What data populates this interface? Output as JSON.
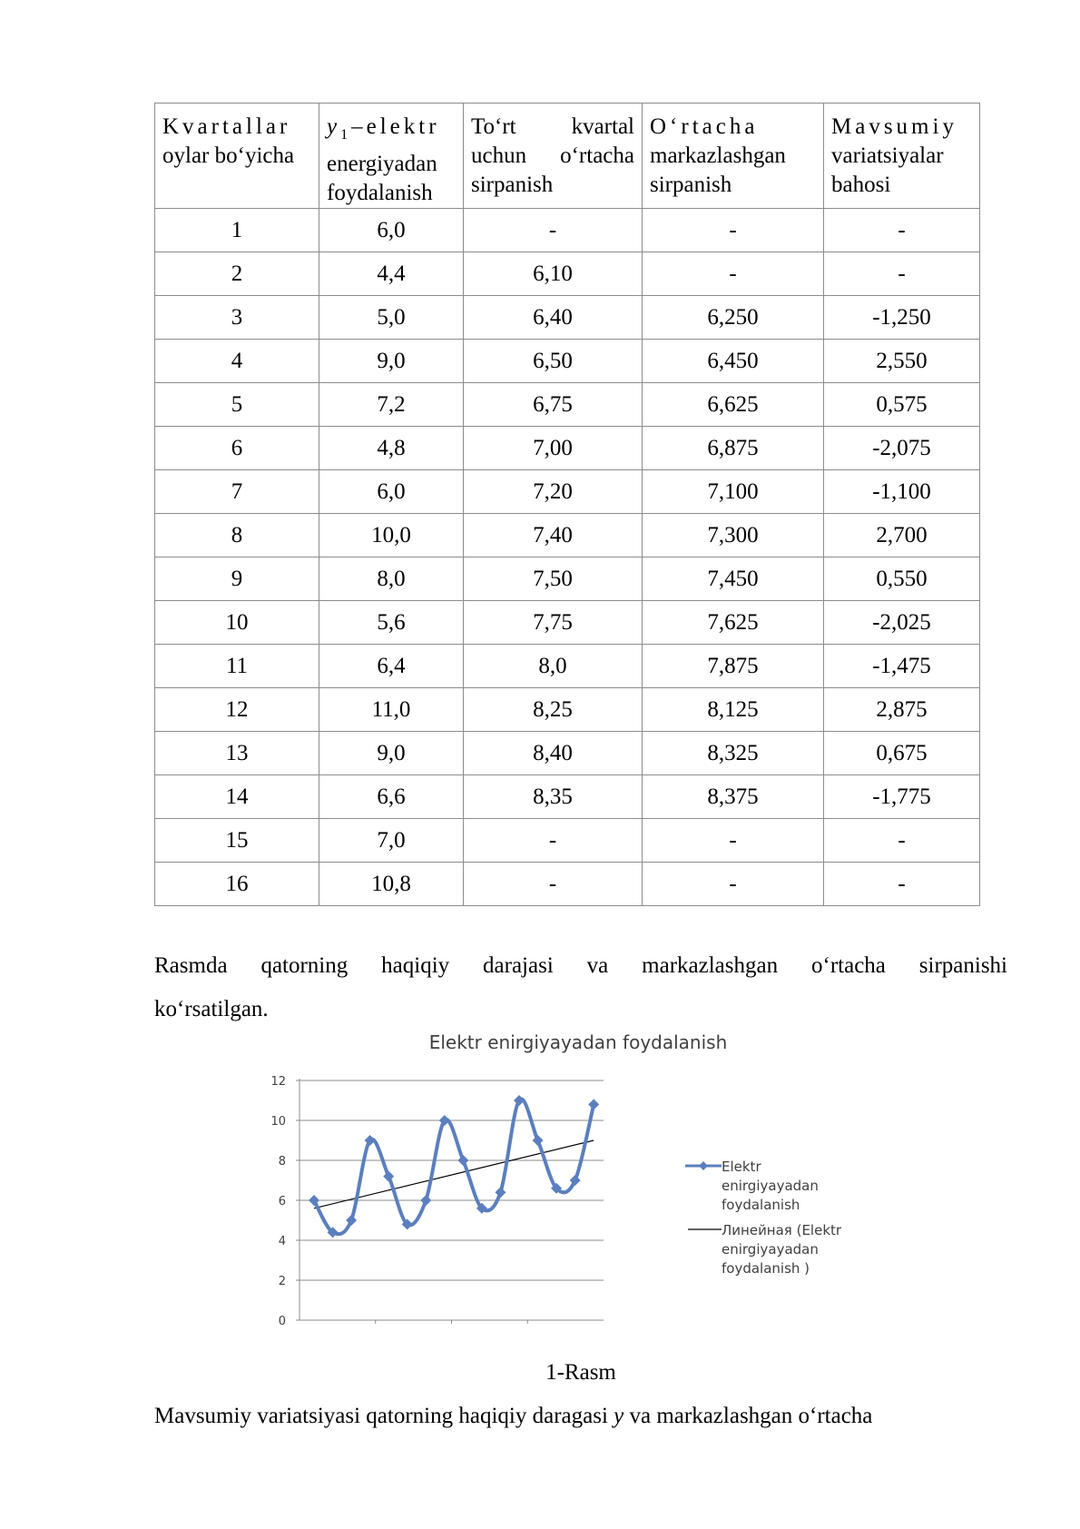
{
  "table": {
    "headers": [
      {
        "lines": [
          "Kvartallar",
          "oylar bo‘yicha"
        ],
        "justify": [
          0
        ]
      },
      {
        "lines": [
          "elektr",
          "energiyadan",
          "foydalanish"
        ],
        "justify": [
          0
        ],
        "symbol": "y",
        "sub": "1",
        "dash": "–"
      },
      {
        "lines": [
          "To‘rt kvartal",
          "uchun o‘rtacha",
          "sirpanish"
        ],
        "justify": [
          0,
          1
        ]
      },
      {
        "lines": [
          "O‘rtacha",
          "markazlashgan",
          "sirpanish"
        ],
        "justify": [
          0
        ]
      },
      {
        "lines": [
          "Mavsumiy",
          "variatsiyalar",
          "bahosi"
        ],
        "justify": [
          0
        ]
      }
    ],
    "rows": [
      [
        "1",
        "6,0",
        "-",
        "-",
        "-"
      ],
      [
        "2",
        "4,4",
        "6,10",
        "-",
        "-"
      ],
      [
        "3",
        "5,0",
        "6,40",
        "6,250",
        "-1,250"
      ],
      [
        "4",
        "9,0",
        "6,50",
        "6,450",
        "2,550"
      ],
      [
        "5",
        "7,2",
        "6,75",
        "6,625",
        "0,575"
      ],
      [
        "6",
        "4,8",
        "7,00",
        "6,875",
        "-2,075"
      ],
      [
        "7",
        "6,0",
        "7,20",
        "7,100",
        "-1,100"
      ],
      [
        "8",
        "10,0",
        "7,40",
        "7,300",
        "2,700"
      ],
      [
        "9",
        "8,0",
        "7,50",
        "7,450",
        "0,550"
      ],
      [
        "10",
        "5,6",
        "7,75",
        "7,625",
        "-2,025"
      ],
      [
        "11",
        "6,4",
        "8,0",
        "7,875",
        "-1,475"
      ],
      [
        "12",
        "11,0",
        "8,25",
        "8,125",
        "2,875"
      ],
      [
        "13",
        "9,0",
        "8,40",
        "8,325",
        "0,675"
      ],
      [
        "14",
        "6,6",
        "8,35",
        "8,375",
        "-1,775"
      ],
      [
        "15",
        "7,0",
        "-",
        "-",
        "-"
      ],
      [
        "16",
        "10,8",
        "-",
        "-",
        "-"
      ]
    ]
  },
  "paragraph1": "Rasmda qatorning haqiqiy darajasi va markazlashgan o‘rtacha sirpanishi ko‘rsatilgan.",
  "chart_data": {
    "type": "line",
    "title": "Elektr enirgiyayadan foydalanish",
    "x": [
      1,
      2,
      3,
      4,
      5,
      6,
      7,
      8,
      9,
      10,
      11,
      12,
      13,
      14,
      15,
      16
    ],
    "series": [
      {
        "name": "Elektr enirgiyayadan foydalanish",
        "values": [
          6.0,
          4.4,
          5.0,
          9.0,
          7.2,
          4.8,
          6.0,
          10.0,
          8.0,
          5.6,
          6.4,
          11.0,
          9.0,
          6.6,
          7.0,
          10.8
        ],
        "color": "#5b7fbe",
        "marker": "diamond",
        "smooth": true
      },
      {
        "name": "Линейная (Elektr enirgiyayadan foydalanish  )",
        "type": "trendline",
        "from": 5.6,
        "to": 9.0,
        "color": "#000000"
      }
    ],
    "ylim": [
      0,
      12
    ],
    "yticks": [
      "0",
      "2",
      "4",
      "6",
      "8",
      "10",
      "12"
    ],
    "grid": true,
    "legend": "right"
  },
  "caption": "1-Rasm",
  "paragraph2": {
    "before": "Mavsumiy  variatsiyasi qatorning haqiqiy daragasi ",
    "symbol": "y",
    "after": " va markazlashgan o‘rtacha"
  }
}
